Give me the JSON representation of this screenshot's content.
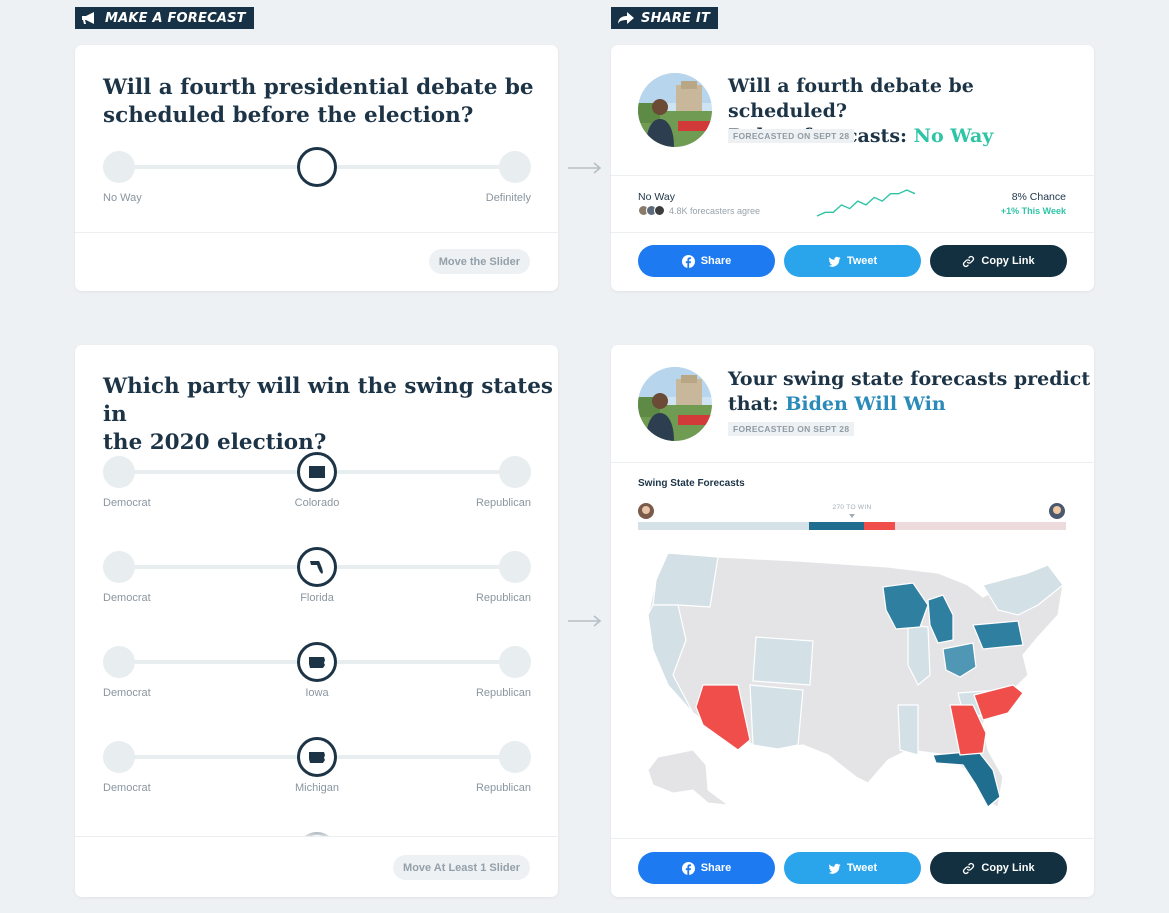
{
  "sections": {
    "make": "MAKE A FORECAST",
    "share": "SHARE IT"
  },
  "debate_card": {
    "question_line1": "Will a fourth presidential debate be",
    "question_line2": "scheduled before the election?",
    "left_label": "No Way",
    "right_label": "Definitely",
    "button": "Move the Slider"
  },
  "swing_card": {
    "question_line1": "Which party will win the swing states in",
    "question_line2": "the 2020 election?",
    "sliders": [
      {
        "left": "Democrat",
        "center": "Colorado",
        "right": "Republican"
      },
      {
        "left": "Democrat",
        "center": "Florida",
        "right": "Republican"
      },
      {
        "left": "Democrat",
        "center": "Iowa",
        "right": "Republican"
      },
      {
        "left": "Democrat",
        "center": "Michigan",
        "right": "Republican"
      }
    ],
    "button": "Move At Least 1 Slider"
  },
  "share_debate": {
    "title_line1": "Will a fourth debate be scheduled?",
    "title_prefix": "Rohan forecasts: ",
    "title_answer": "No Way",
    "date": "FORECASTED ON SEPT 28",
    "stat_label": "No Way",
    "agree": "4.8K forecasters agree",
    "chance": "8% Chance",
    "change": "+1% This Week",
    "trend": [
      2,
      3,
      3,
      5,
      4,
      6,
      5,
      7,
      6,
      8,
      8,
      9,
      8
    ]
  },
  "share_swing": {
    "title_line1": "Your swing state forecasts predict",
    "title_prefix": "that: ",
    "title_answer": "Biden Will Win",
    "date": "FORECASTED ON SEPT 28",
    "chart_title": "Swing State Forecasts",
    "to_win": "270 TO WIN"
  },
  "buttons": {
    "share": "Share",
    "tweet": "Tweet",
    "copy": "Copy Link"
  },
  "colors": {
    "navy": "#1d3447",
    "teal": "#2ec4a6",
    "dem_strong": "#2e7fa0",
    "rep_strong": "#f04e4a",
    "facebook": "#1d7af1",
    "twitter": "#2aa5ec"
  }
}
